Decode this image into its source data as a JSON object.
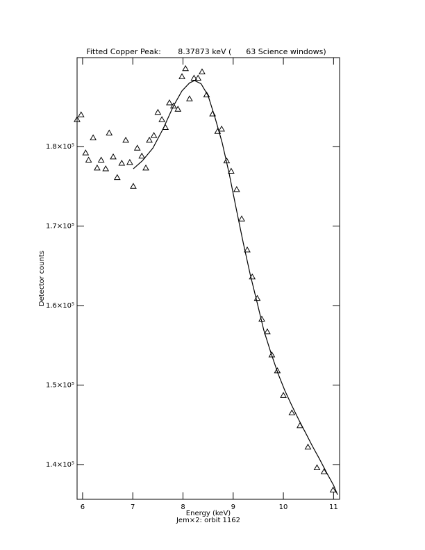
{
  "chart_data": {
    "type": "scatter",
    "title": "Fitted Copper Peak:       8.37873 keV (      63 Science windows)",
    "x_label": "Energy (keV)",
    "subtitle": "Jem×2: orbit 1162",
    "y_label": "Detector counts",
    "xlim": [
      5.89,
      11.12
    ],
    "ylim": [
      135630,
      191180
    ],
    "xticks": [
      6,
      7,
      8,
      9,
      10,
      11
    ],
    "yticks": [
      {
        "value": 140000,
        "label": "1.4×10⁵"
      },
      {
        "value": 150000,
        "label": "1.5×10⁵"
      },
      {
        "value": 160000,
        "label": "1.6×10⁵"
      },
      {
        "value": 170000,
        "label": "1.7×10⁵"
      },
      {
        "value": 180000,
        "label": "1.8×10⁵"
      }
    ],
    "series": [
      {
        "type": "scatter",
        "marker": "triangle",
        "color": "#000000",
        "x": [
          5.89,
          5.97,
          6.06,
          6.12,
          6.21,
          6.29,
          6.37,
          6.46,
          6.53,
          6.61,
          6.69,
          6.78,
          6.86,
          6.94,
          7.01,
          7.09,
          7.18,
          7.26,
          7.33,
          7.42,
          7.5,
          7.58,
          7.65,
          7.73,
          7.81,
          7.9,
          7.98,
          8.05,
          8.13,
          8.22,
          8.3,
          8.38,
          8.47,
          8.59,
          8.69,
          8.77,
          8.87,
          8.96,
          9.07,
          9.17,
          9.28,
          9.38,
          9.48,
          9.57,
          9.68,
          9.77,
          9.88,
          10.0,
          10.17,
          10.33,
          10.49,
          10.67,
          10.81,
          10.99
        ],
        "values": [
          183400,
          184000,
          179200,
          178300,
          181100,
          177300,
          178300,
          177200,
          181700,
          178700,
          176100,
          177900,
          180800,
          178000,
          175000,
          179800,
          178800,
          177300,
          180800,
          181400,
          184300,
          183400,
          182400,
          185500,
          185100,
          184700,
          188800,
          189800,
          186000,
          188600,
          188600,
          189400,
          186500,
          184100,
          181900,
          182200,
          178200,
          176900,
          174600,
          170900,
          167000,
          163600,
          160900,
          158300,
          156700,
          153800,
          151800,
          148700,
          146500,
          144900,
          142200,
          139600,
          139100,
          136800
        ]
      },
      {
        "type": "line",
        "color": "#000000",
        "x": [
          7.01,
          7.19,
          7.4,
          7.61,
          7.81,
          7.98,
          8.13,
          8.23,
          8.36,
          8.5,
          8.64,
          8.78,
          8.92,
          9.06,
          9.2,
          9.34,
          9.48,
          9.61,
          9.75,
          9.89,
          10.03,
          10.17,
          10.31,
          10.45,
          10.58,
          10.72,
          10.86,
          11.0,
          11.08
        ],
        "values": [
          177200,
          178200,
          179800,
          182300,
          185100,
          187000,
          188000,
          188300,
          187900,
          186400,
          183600,
          180500,
          176600,
          172200,
          167900,
          163900,
          160300,
          156900,
          154100,
          151500,
          149300,
          147400,
          145600,
          143900,
          142300,
          140700,
          139000,
          137400,
          136200
        ]
      }
    ]
  }
}
